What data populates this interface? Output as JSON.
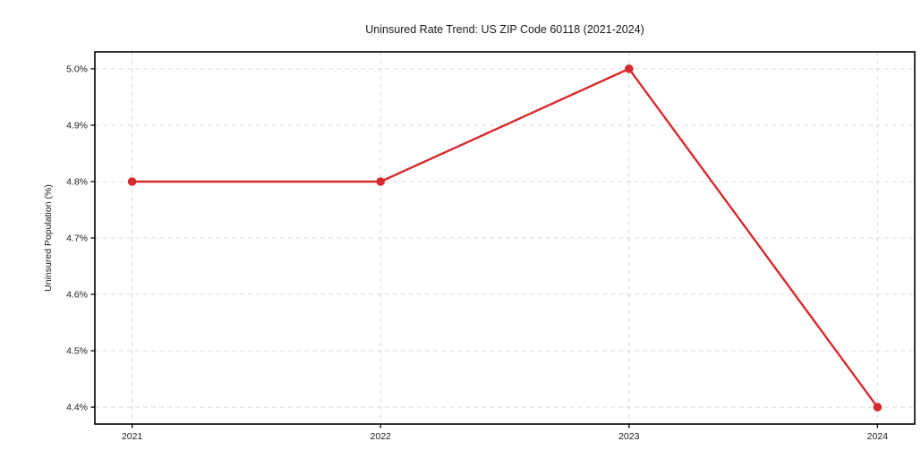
{
  "chart_data": {
    "type": "line",
    "title": "Uninsured Rate Trend: US ZIP Code 60118 (2021-2024)",
    "xlabel": "",
    "ylabel": "Uninsured Population (%)",
    "x": [
      2021,
      2022,
      2023,
      2024
    ],
    "x_tick_labels": [
      "2021",
      "2022",
      "2023",
      "2024"
    ],
    "values": [
      4.8,
      4.8,
      5.0,
      4.4
    ],
    "y_ticks": [
      4.4,
      4.5,
      4.6,
      4.7,
      4.8,
      4.9,
      5.0
    ],
    "y_tick_labels": [
      "4.4%",
      "4.5%",
      "4.6%",
      "4.7%",
      "4.8%",
      "4.9%",
      "5.0%"
    ],
    "xlim": [
      2020.85,
      2024.15
    ],
    "ylim": [
      4.37,
      5.03
    ],
    "grid": true,
    "grid_style": "dashed",
    "legend_position": "none",
    "marker": "circle",
    "colors": {
      "line": "#d62b2e",
      "marker": "#d62b2e",
      "grid": "#d9d9d9",
      "spine": "#000000",
      "text": "#1a1a1a",
      "background": "#ffffff"
    }
  }
}
